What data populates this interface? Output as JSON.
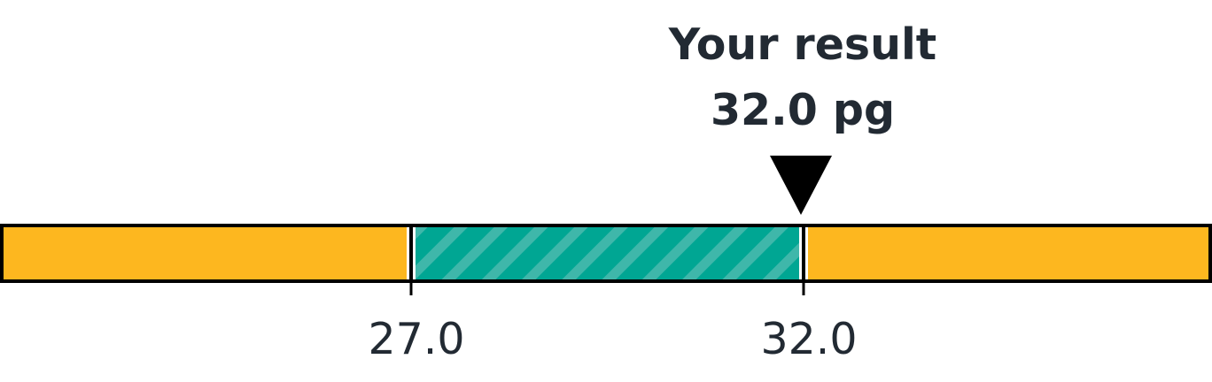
{
  "result": {
    "label": "Your result",
    "value_text": "32.0 pg",
    "value": 32.0,
    "unit": "pg"
  },
  "chart_data": {
    "type": "bar",
    "orientation": "horizontal-range-gauge",
    "reference_range": [
      27.0,
      32.0
    ],
    "result_value": 32.0,
    "ticks": [
      {
        "value": 27.0,
        "label": "27.0"
      },
      {
        "value": 32.0,
        "label": "32.0"
      }
    ],
    "segments": [
      {
        "name": "low",
        "color": "#fdb71f"
      },
      {
        "name": "normal",
        "color": "#00a693",
        "pattern": "diagonal-stripes"
      },
      {
        "name": "high",
        "color": "#fdb71f"
      }
    ],
    "marker": "down-triangle",
    "colors": {
      "out_of_range": "#fdb71f",
      "in_range": "#00a693",
      "in_range_stripe": "#3fb7aa",
      "outline": "#000000",
      "text": "#222a33"
    }
  }
}
